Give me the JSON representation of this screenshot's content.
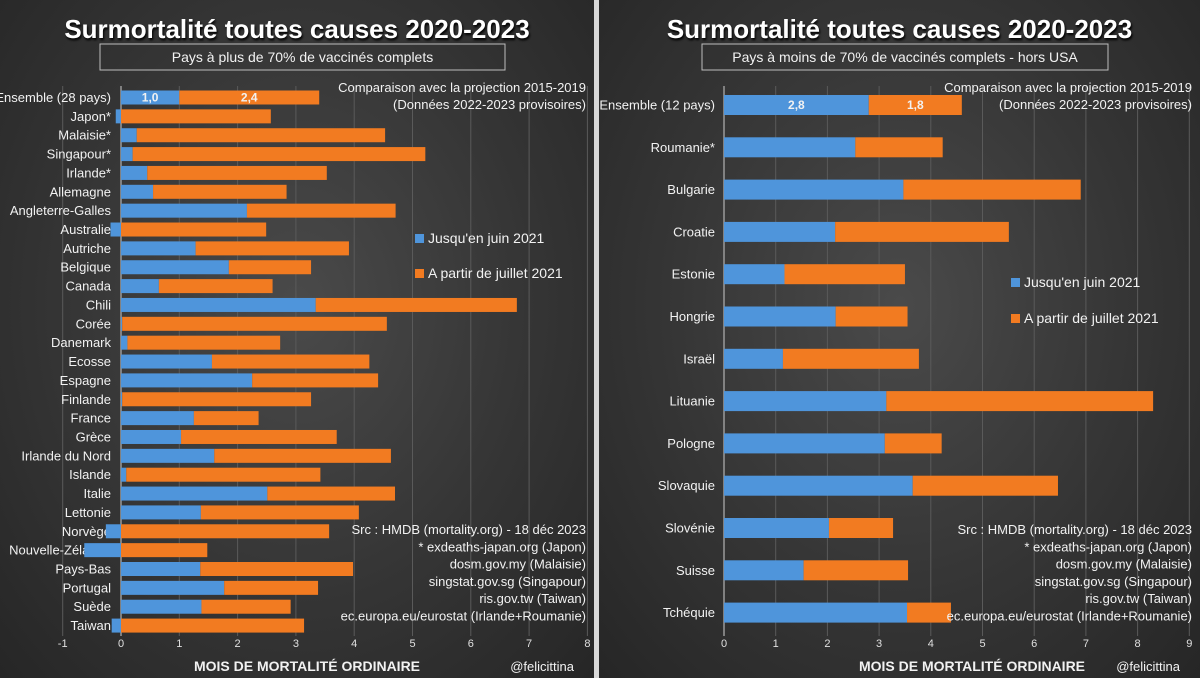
{
  "colors": {
    "series1": "#4f95db",
    "series2": "#f27b21"
  },
  "chart_data": [
    {
      "type": "bar",
      "orientation": "horizontal",
      "stacked": true,
      "title": "Surmortalité toutes causes 2020-2023",
      "subtitle": "Pays à plus de 70% de vaccinés complets",
      "notes": [
        "Comparaison avec la projection 2015-2019",
        "(Données 2022-2023 provisoires)"
      ],
      "xlabel": "MOIS DE MORTALITÉ ORDINAIRE",
      "xlim": [
        -1,
        8
      ],
      "xticks": [
        "-1",
        "0",
        "1",
        "2",
        "3",
        "4",
        "5",
        "6",
        "7",
        "8"
      ],
      "grid": true,
      "legend_position": "right",
      "categories": [
        "Ensemble (28 pays)",
        "Japon*",
        "Malaisie*",
        "Singapour*",
        "Irlande*",
        "Allemagne",
        "Angleterre-Galles",
        "Australie",
        "Autriche",
        "Belgique",
        "Canada",
        "Chili",
        "Corée",
        "Danemark",
        "Ecosse",
        "Espagne",
        "Finlande",
        "France",
        "Grèce",
        "Irlande du Nord",
        "Islande",
        "Italie",
        "Lettonie",
        "Norvège",
        "Nouvelle-Zélande",
        "Pays-Bas",
        "Portugal",
        "Suède",
        "Taiwan"
      ],
      "series": [
        {
          "name": "Jusqu'en juin 2021",
          "values": [
            1.0,
            -0.09,
            0.27,
            0.2,
            0.45,
            0.55,
            2.16,
            -0.18,
            1.28,
            1.85,
            0.65,
            3.34,
            0.02,
            0.11,
            1.56,
            2.25,
            0.02,
            1.25,
            1.03,
            1.6,
            0.09,
            2.51,
            1.37,
            -0.26,
            -0.63,
            1.36,
            1.77,
            1.38,
            -0.16
          ]
        },
        {
          "name": "A partir de juillet 2021",
          "values": [
            2.4,
            2.57,
            4.26,
            5.02,
            3.08,
            2.29,
            2.55,
            2.49,
            2.63,
            1.41,
            1.95,
            3.45,
            4.54,
            2.62,
            2.7,
            2.16,
            3.24,
            1.11,
            2.67,
            3.03,
            3.33,
            2.19,
            2.71,
            3.57,
            1.48,
            2.62,
            1.61,
            1.53,
            3.14
          ]
        }
      ],
      "data_labels": [
        "1,0",
        "2,4"
      ],
      "sources": [
        "Src : HMDB (mortality.org) - 18 déc 2023",
        "* exdeaths-japan.org (Japon)",
        "dosm.gov.my (Malaisie)",
        "singstat.gov.sg (Singapour)",
        "ris.gov.tw (Taiwan)",
        "ec.europa.eu/eurostat (Irlande+Roumanie)"
      ],
      "credit": "@felicittina"
    },
    {
      "type": "bar",
      "orientation": "horizontal",
      "stacked": true,
      "title": "Surmortalité toutes causes 2020-2023",
      "subtitle": "Pays à moins de 70% de vaccinés complets - hors USA",
      "notes": [
        "Comparaison avec la projection 2015-2019",
        "(Données 2022-2023 provisoires)"
      ],
      "xlabel": "MOIS DE MORTALITÉ ORDINAIRE",
      "xlim": [
        0,
        9
      ],
      "xticks": [
        "0",
        "1",
        "2",
        "3",
        "4",
        "5",
        "6",
        "7",
        "8",
        "9"
      ],
      "grid": true,
      "legend_position": "right",
      "categories": [
        "Ensemble (12 pays)",
        "Roumanie*",
        "Bulgarie",
        "Croatie",
        "Estonie",
        "Hongrie",
        "Israël",
        "Lituanie",
        "Pologne",
        "Slovaquie",
        "Slovénie",
        "Suisse",
        "Tchéquie"
      ],
      "series": [
        {
          "name": "Jusqu'en juin 2021",
          "values": [
            2.8,
            2.54,
            3.47,
            2.15,
            1.17,
            2.16,
            1.14,
            3.14,
            3.11,
            3.65,
            2.03,
            1.54,
            3.54
          ]
        },
        {
          "name": "A partir de juillet 2021",
          "values": [
            1.8,
            1.69,
            3.43,
            3.36,
            2.33,
            1.39,
            2.63,
            5.16,
            1.1,
            2.81,
            1.24,
            2.02,
            0.85
          ]
        }
      ],
      "data_labels": [
        "2,8",
        "1,8"
      ],
      "sources": [
        "Src : HMDB (mortality.org) - 18 déc 2023",
        "* exdeaths-japan.org (Japon)",
        "dosm.gov.my (Malaisie)",
        "singstat.gov.sg (Singapour)",
        "ris.gov.tw (Taiwan)",
        "ec.europa.eu/eurostat (Irlande+Roumanie)"
      ],
      "credit": "@felicittina"
    }
  ]
}
